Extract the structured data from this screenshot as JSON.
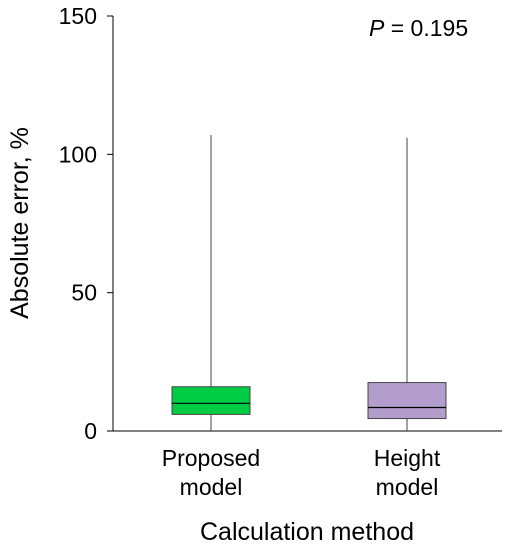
{
  "chart_data": {
    "type": "box",
    "title": "",
    "xlabel": "Calculation method",
    "ylabel": "Absolute error, %",
    "ylim": [
      0,
      150
    ],
    "yticks": [
      0,
      50,
      100,
      150
    ],
    "grid": false,
    "legend": "none",
    "annotation": {
      "prefix": "P",
      "text": " = 0.195"
    },
    "categories": [
      {
        "label_lines": [
          "Proposed",
          "model"
        ],
        "color": "#00cc44"
      },
      {
        "label_lines": [
          "Height",
          "model"
        ],
        "color": "#b39dcc"
      }
    ],
    "boxes": [
      {
        "category": "Proposed model",
        "min": 0,
        "q1": 6,
        "median": 10,
        "q3": 16,
        "max": 107
      },
      {
        "category": "Height model",
        "min": 0,
        "q1": 4.5,
        "median": 8.5,
        "q3": 17.5,
        "max": 106
      }
    ]
  }
}
